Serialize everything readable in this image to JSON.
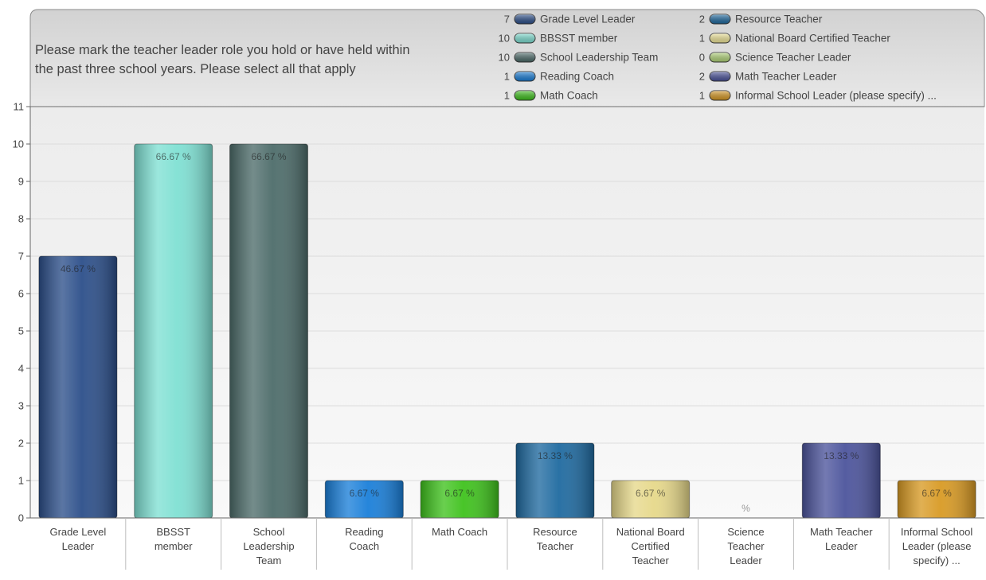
{
  "chart_data": {
    "type": "bar",
    "title": "Please mark the teacher leader role you hold or have held within the past three school years.  Please select all that apply",
    "title_lines": [
      "Please mark the teacher leader role you hold or have held within",
      "the past three school years.  Please select all that apply"
    ],
    "categories": [
      "Grade Level Leader",
      "BBSST member",
      "School Leadership Team",
      "Reading Coach",
      "Math Coach",
      "Resource Teacher",
      "National Board Certified Teacher",
      "Science Teacher Leader",
      "Math Teacher Leader",
      "Informal School Leader (please specify) ..."
    ],
    "category_label_lines": [
      [
        "Grade Level",
        "Leader"
      ],
      [
        "BBSST",
        "member"
      ],
      [
        "School",
        "Leadership",
        "Team"
      ],
      [
        "Reading",
        "Coach"
      ],
      [
        "Math Coach"
      ],
      [
        "Resource",
        "Teacher"
      ],
      [
        "National Board",
        "Certified",
        "Teacher"
      ],
      [
        "Science",
        "Teacher",
        "Leader"
      ],
      [
        "Math Teacher",
        "Leader"
      ],
      [
        "Informal School",
        "Leader (please",
        "specify) ..."
      ]
    ],
    "values": [
      7,
      10,
      10,
      1,
      1,
      2,
      1,
      0,
      2,
      1
    ],
    "percent_labels": [
      "46.67 %",
      "66.67 %",
      "66.67 %",
      "6.67 %",
      "6.67 %",
      "13.33 %",
      "6.67 %",
      "%",
      "13.33 %",
      "6.67 %"
    ],
    "colors": [
      "#2c4f8a",
      "#7fe0d3",
      "#4d6c6a",
      "#1a7fd9",
      "#3fc21d",
      "#1f6aa0",
      "#e6d88a",
      "#b3d67a",
      "#4c549c",
      "#d89a24"
    ],
    "legend": [
      {
        "count": "7",
        "label": "Grade Level Leader",
        "color": "#2c4f8a"
      },
      {
        "count": "10",
        "label": "BBSST member",
        "color": "#7fe0d3"
      },
      {
        "count": "10",
        "label": "School Leadership Team",
        "color": "#4d6c6a"
      },
      {
        "count": "1",
        "label": "Reading Coach",
        "color": "#1a7fd9"
      },
      {
        "count": "1",
        "label": "Math Coach",
        "color": "#3fc21d"
      },
      {
        "count": "2",
        "label": "Resource Teacher",
        "color": "#1f6aa0"
      },
      {
        "count": "1",
        "label": "National Board Certified Teacher",
        "color": "#f2e89a"
      },
      {
        "count": "0",
        "label": "Science Teacher Leader",
        "color": "#b3d67a"
      },
      {
        "count": "2",
        "label": "Math Teacher Leader",
        "color": "#4c549c"
      },
      {
        "count": "1",
        "label": "Informal School Leader (please specify) ...",
        "color": "#d89a24"
      }
    ],
    "yticks": [
      0,
      1,
      2,
      3,
      4,
      5,
      6,
      7,
      8,
      9,
      10,
      11
    ],
    "ylim": [
      0,
      11
    ],
    "xlabel": "",
    "ylabel": "",
    "grid": true,
    "legend_position": "top-right"
  }
}
